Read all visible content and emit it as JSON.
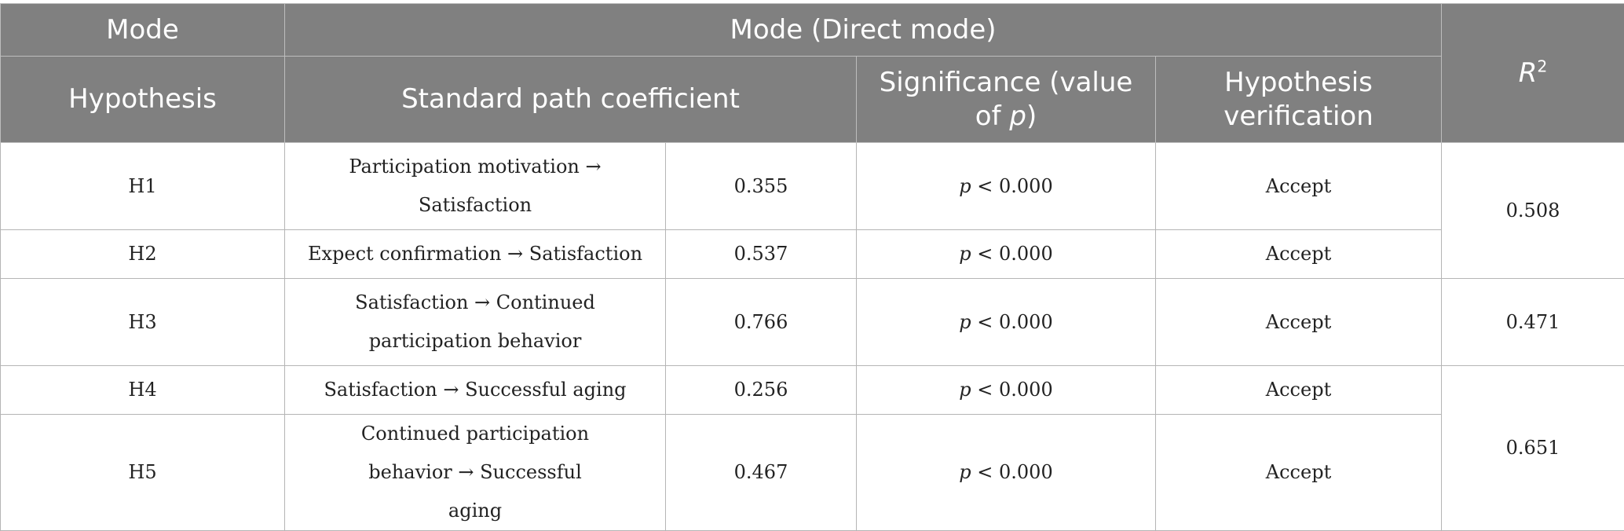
{
  "header": {
    "mode_label": "Mode",
    "mode_direct": "Mode (Direct mode)",
    "r2_letter": "R",
    "r2_exp": "2",
    "hypothesis_label": "Hypothesis",
    "path_coef_label": "Standard path coefficient",
    "significance_prefix": "Significance (value of ",
    "significance_p": "p",
    "significance_suffix": ")",
    "verification_label": "Hypothesis verification"
  },
  "rows": [
    {
      "hyp": "H1",
      "path": "Participation motivation → Satisfaction",
      "coef": "0.355",
      "p_letter": "p",
      "p_rest": " < 0.000",
      "result": "Accept"
    },
    {
      "hyp": "H2",
      "path": "Expect confirmation → Satisfaction",
      "coef": "0.537",
      "p_letter": "p",
      "p_rest": " < 0.000",
      "result": "Accept"
    },
    {
      "hyp": "H3",
      "path": "Satisfaction → Continued participation behavior",
      "coef": "0.766",
      "p_letter": "p",
      "p_rest": " < 0.000",
      "result": "Accept"
    },
    {
      "hyp": "H4",
      "path": "Satisfaction → Successful aging",
      "coef": "0.256",
      "p_letter": "p",
      "p_rest": " < 0.000",
      "result": "Accept"
    },
    {
      "hyp": "H5",
      "path": "Continued participation behavior → Successful aging",
      "coef": "0.467",
      "p_letter": "p",
      "p_rest": " < 0.000",
      "result": "Accept"
    }
  ],
  "r2_values": [
    "0.508",
    "0.471",
    "0.651"
  ]
}
